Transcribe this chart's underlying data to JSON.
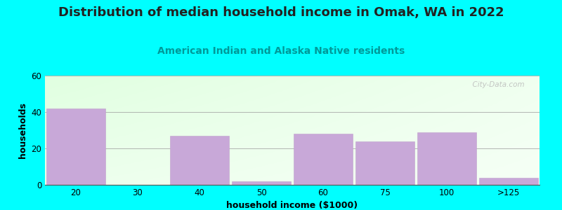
{
  "title": "Distribution of median household income in Omak, WA in 2022",
  "subtitle": "American Indian and Alaska Native residents",
  "xlabel": "household income ($1000)",
  "ylabel": "households",
  "background_outer": "#00FFFF",
  "bar_color": "#C8A8D8",
  "bar_edge_color": "#C0A0CC",
  "categories": [
    "20",
    "30",
    "40",
    "50",
    "60",
    "75",
    "100",
    ">125"
  ],
  "values": [
    42,
    0,
    27,
    2,
    28,
    24,
    29,
    4
  ],
  "ylim": [
    0,
    60
  ],
  "yticks": [
    0,
    20,
    40,
    60
  ],
  "title_fontsize": 13,
  "subtitle_fontsize": 10,
  "axis_label_fontsize": 9,
  "tick_fontsize": 8.5,
  "title_color": "#222222",
  "subtitle_color": "#009999",
  "watermark": "  City-Data.com"
}
